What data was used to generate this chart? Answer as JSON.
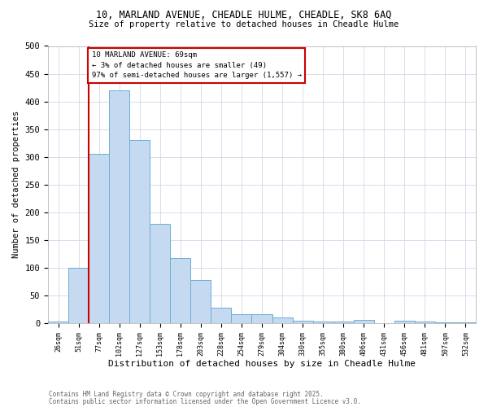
{
  "title_line1": "10, MARLAND AVENUE, CHEADLE HULME, CHEADLE, SK8 6AQ",
  "title_line2": "Size of property relative to detached houses in Cheadle Hulme",
  "xlabel": "Distribution of detached houses by size in Cheadle Hulme",
  "ylabel": "Number of detached properties",
  "categories": [
    "26sqm",
    "51sqm",
    "77sqm",
    "102sqm",
    "127sqm",
    "153sqm",
    "178sqm",
    "203sqm",
    "228sqm",
    "254sqm",
    "279sqm",
    "304sqm",
    "330sqm",
    "355sqm",
    "380sqm",
    "406sqm",
    "431sqm",
    "456sqm",
    "481sqm",
    "507sqm",
    "532sqm"
  ],
  "values": [
    3,
    100,
    305,
    420,
    330,
    180,
    118,
    78,
    28,
    16,
    16,
    10,
    5,
    3,
    3,
    6,
    1,
    4,
    3,
    2,
    2
  ],
  "bar_color": "#c5d9f0",
  "bar_edge_color": "#6baed6",
  "vline_x_index": 1.5,
  "vline_color": "#cc0000",
  "annotation_text": "10 MARLAND AVENUE: 69sqm\n← 3% of detached houses are smaller (49)\n97% of semi-detached houses are larger (1,557) →",
  "annotation_box_color": "#cc0000",
  "ylim": [
    0,
    500
  ],
  "yticks": [
    0,
    50,
    100,
    150,
    200,
    250,
    300,
    350,
    400,
    450,
    500
  ],
  "footer_line1": "Contains HM Land Registry data © Crown copyright and database right 2025.",
  "footer_line2": "Contains public sector information licensed under the Open Government Licence v3.0.",
  "bg_color": "#ffffff",
  "grid_color": "#d0d8e8"
}
